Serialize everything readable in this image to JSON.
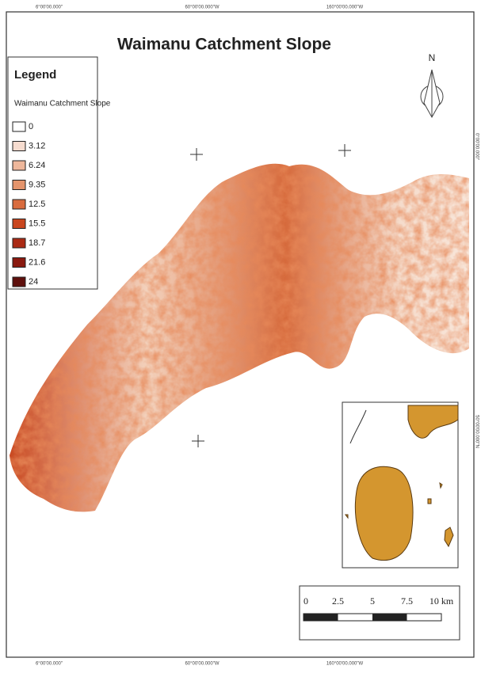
{
  "map": {
    "title": "Waimanu Catchment Slope",
    "legend": {
      "heading": "Legend",
      "layer": "Waimanu Catchment Slope",
      "items": [
        {
          "label": "0",
          "color": "#ffffff"
        },
        {
          "label": "3.12",
          "color": "#f6dccf"
        },
        {
          "label": "6.24",
          "color": "#eeb79b"
        },
        {
          "label": "9.35",
          "color": "#e4946c"
        },
        {
          "label": "12.5",
          "color": "#d96c3f"
        },
        {
          "label": "15.5",
          "color": "#c9461f"
        },
        {
          "label": "18.7",
          "color": "#aa2a14"
        },
        {
          "label": "21.6",
          "color": "#8a1a10"
        },
        {
          "label": "24",
          "color": "#5e0f0c"
        }
      ]
    },
    "north": "N",
    "coords_top": [
      "6°00'00.000\"",
      "60°00'00.000\"W",
      "160°00'00.000\"W"
    ],
    "coords_bottom": [
      "6°00'00.000\"",
      "60°00'00.000\"W",
      "160°00'00.000\"W"
    ],
    "coords_right": [
      "0°00'00.000\"",
      "50°00'00.000\"N"
    ],
    "scale": [
      "0",
      "2.5",
      "5",
      "7.5",
      "10 km"
    ]
  }
}
